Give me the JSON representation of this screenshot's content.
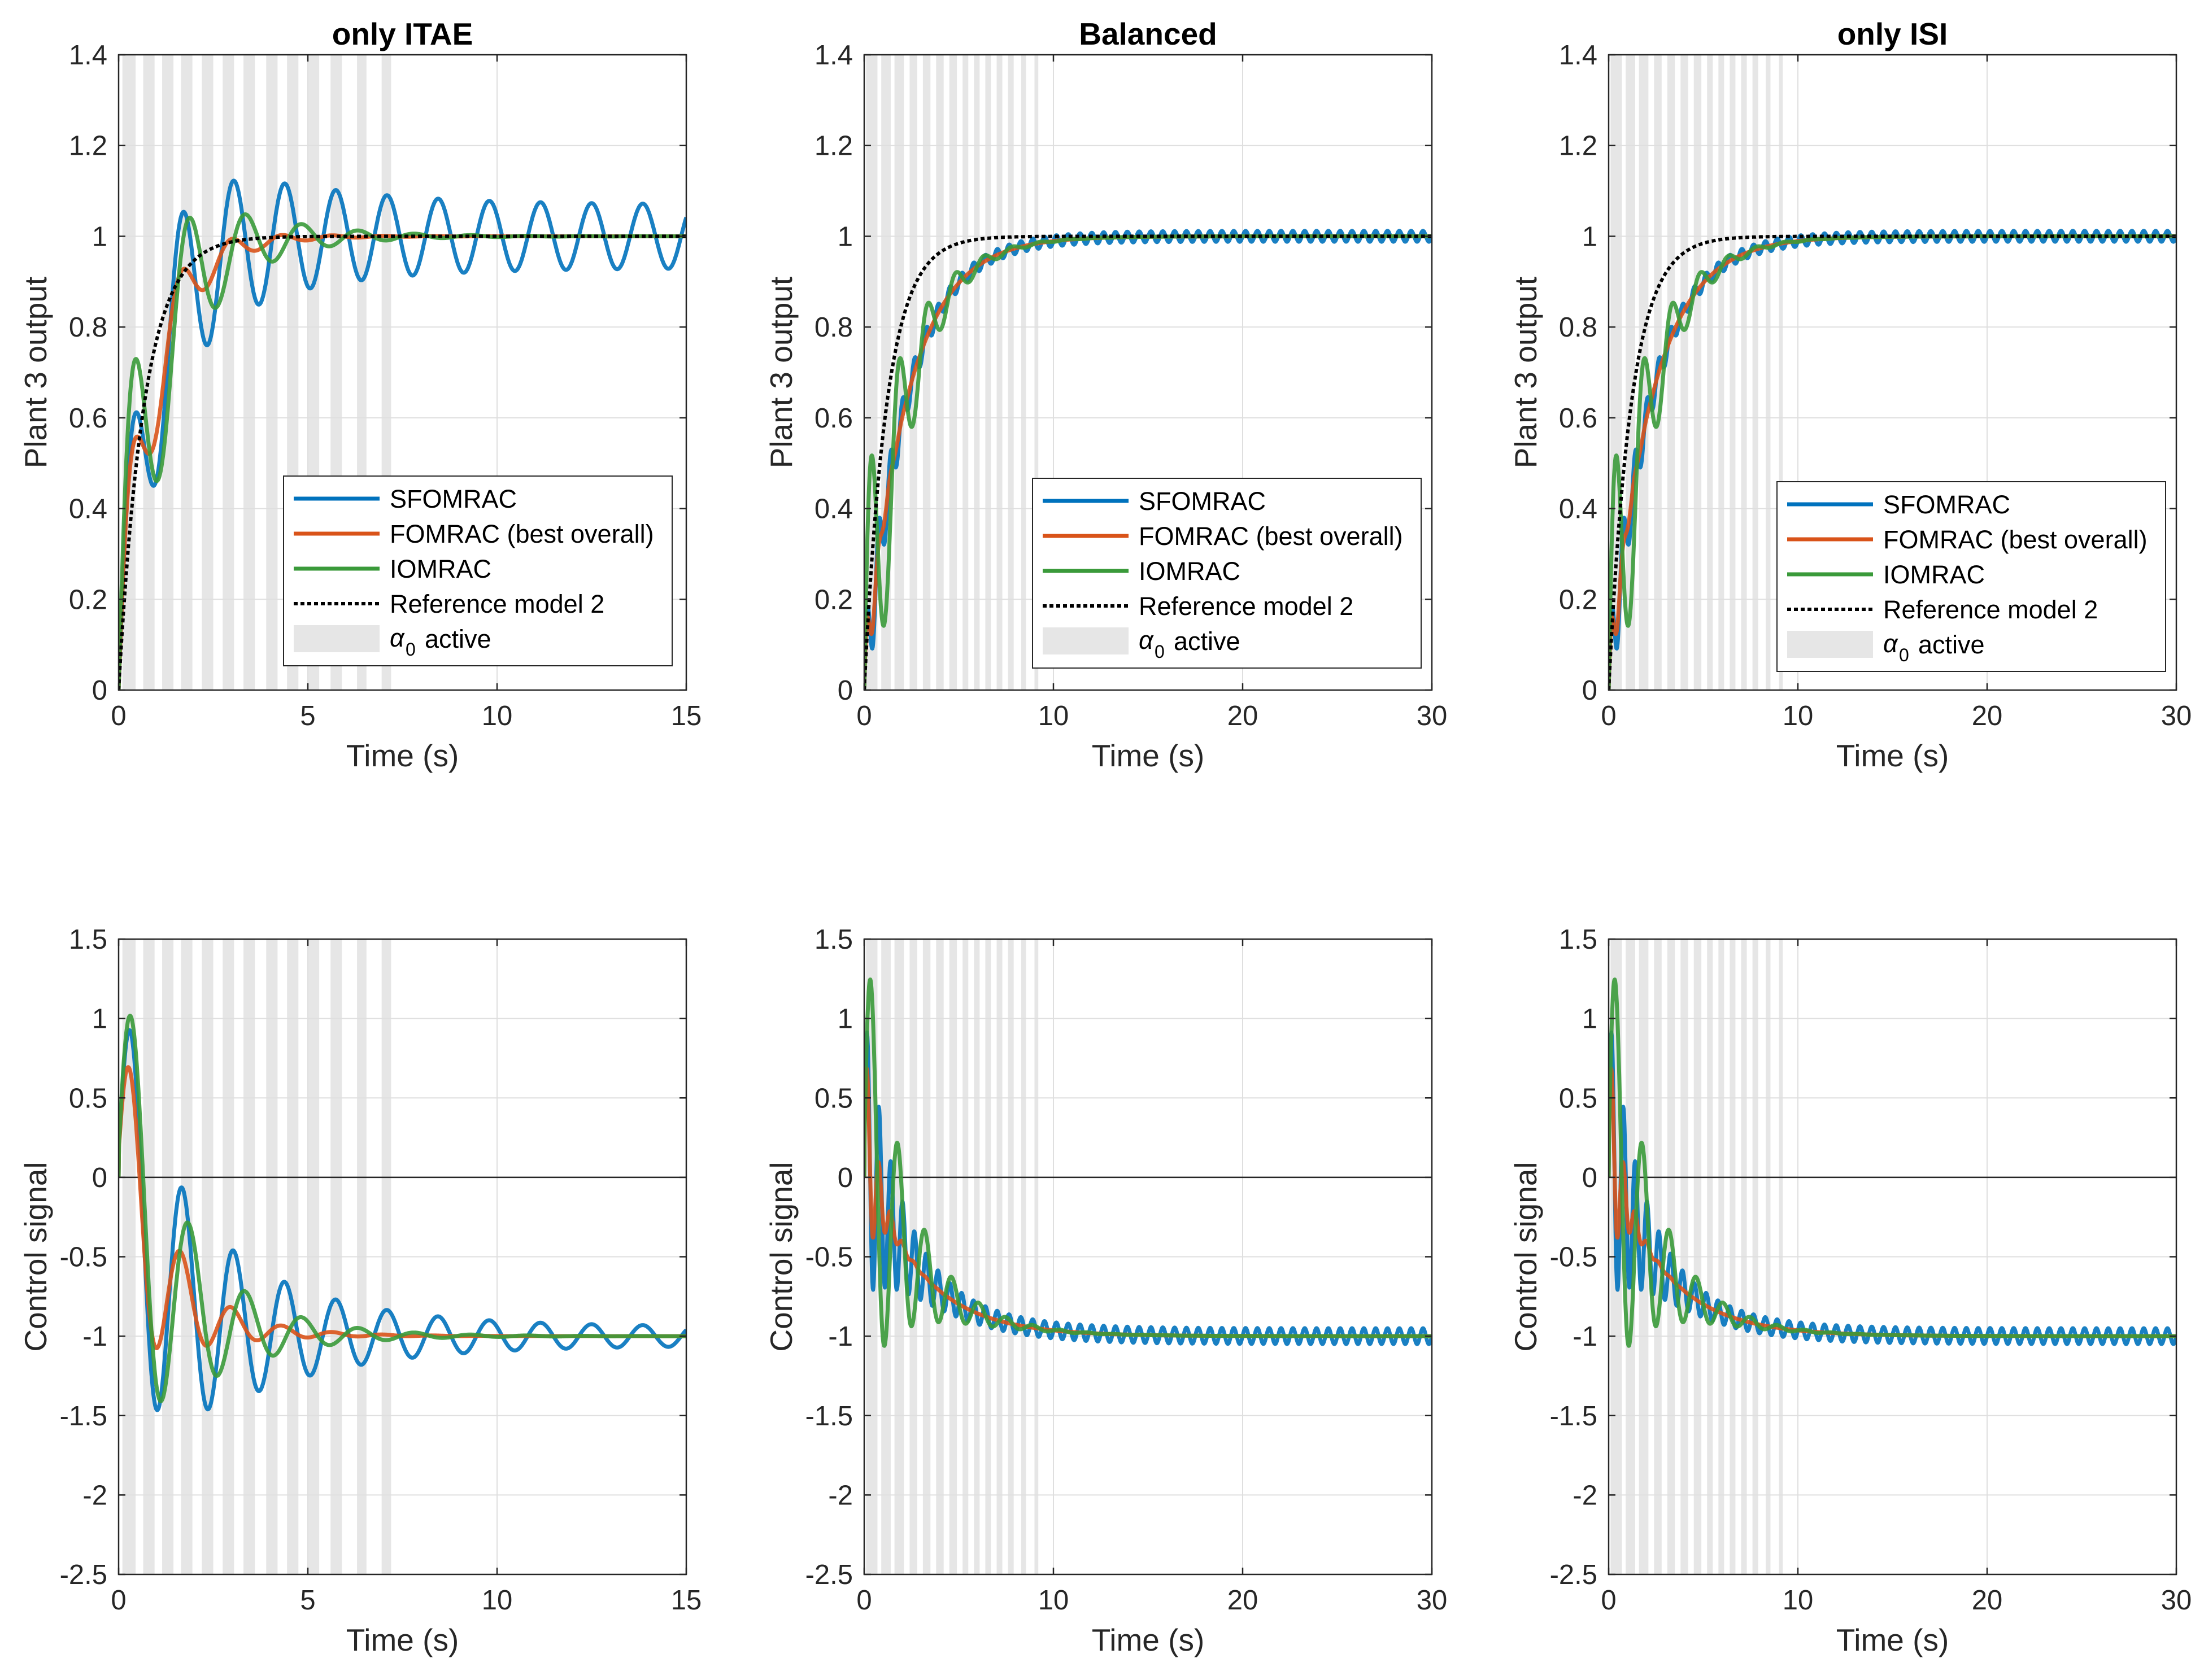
{
  "figure": {
    "description_free": true,
    "colors": {
      "background": "#ffffff",
      "axis": "#262626",
      "grid": "#dfdfdf",
      "shade": "#e6e6e6",
      "sfomrac": "#0072BD",
      "fomrac": "#D95319",
      "iomrac": "#3a9a3a",
      "reference": "#000000"
    }
  },
  "chart_data": [
    {
      "panel": "top-left",
      "type": "line",
      "title": "only ITAE",
      "xlabel": "Time (s)",
      "ylabel": "Plant 3 output",
      "xlim": [
        0,
        15
      ],
      "ylim": [
        0,
        1.4
      ],
      "xticks": [
        "0",
        "5",
        "10",
        "15"
      ],
      "yticks": [
        "0",
        "0.2",
        "0.4",
        "0.6",
        "0.8",
        "1",
        "1.2",
        "1.4"
      ],
      "signal": "output",
      "shaded_intervals": [
        [
          0.1,
          0.45
        ],
        [
          0.65,
          0.95
        ],
        [
          1.15,
          1.45
        ],
        [
          1.65,
          1.95
        ],
        [
          2.2,
          2.5
        ],
        [
          2.75,
          3.05
        ],
        [
          3.3,
          3.6
        ],
        [
          3.9,
          4.2
        ],
        [
          4.45,
          4.75
        ],
        [
          5.0,
          5.3
        ],
        [
          5.6,
          5.9
        ],
        [
          6.3,
          6.55
        ],
        [
          6.95,
          7.2
        ]
      ],
      "legend": {
        "placement": "bottom-right",
        "entries": [
          "SFOMRAC",
          "FOMRAC (best overall)",
          "IOMRAC",
          "Reference model 2",
          "active"
        ],
        "shade_symbol": "α",
        "shade_subscript": "0"
      },
      "series": [
        {
          "name": "SFOMRAC",
          "color": "#0072BD",
          "model": {
            "A": 0.25,
            "d": 0.35,
            "f": 0.74,
            "L": 0.07,
            "p": 0.87
          }
        },
        {
          "name": "FOMRAC (best overall)",
          "color": "#D95319",
          "model": {
            "A": 0.25,
            "d": 0.75,
            "f": 0.75,
            "L": 0.0,
            "p": 0.87
          }
        },
        {
          "name": "IOMRAC",
          "color": "#3a9a3a",
          "model": {
            "A": 0.44,
            "d": 0.55,
            "f": 0.67,
            "L": 0.0,
            "p": 0.87
          }
        },
        {
          "name": "Reference model 2",
          "color": "#000000",
          "dashed": true,
          "model": {
            "A": 0.0,
            "d": 0.0,
            "f": 0.0,
            "L": 0.0,
            "p": 0.68
          }
        }
      ]
    },
    {
      "panel": "top-center",
      "type": "line",
      "title": "Balanced",
      "xlabel": "Time (s)",
      "ylabel": "Plant 3 output",
      "xlim": [
        0,
        30
      ],
      "ylim": [
        0,
        1.4
      ],
      "xticks": [
        "0",
        "10",
        "20",
        "30"
      ],
      "yticks": [
        "0",
        "0.2",
        "0.4",
        "0.6",
        "0.8",
        "1",
        "1.2",
        "1.4"
      ],
      "signal": "output",
      "shaded_intervals": [
        [
          0.1,
          0.7
        ],
        [
          0.9,
          1.4
        ],
        [
          1.6,
          2.1
        ],
        [
          2.4,
          2.8
        ],
        [
          3.1,
          3.5
        ],
        [
          3.8,
          4.2
        ],
        [
          4.5,
          4.9
        ],
        [
          5.2,
          5.5
        ],
        [
          5.8,
          6.1
        ],
        [
          6.4,
          6.7
        ],
        [
          7.0,
          7.3
        ],
        [
          7.6,
          7.9
        ],
        [
          8.3,
          8.55
        ],
        [
          9.0,
          9.2
        ]
      ],
      "legend": {
        "placement": "bottom-right",
        "entries": [
          "SFOMRAC",
          "FOMRAC (best overall)",
          "IOMRAC",
          "Reference model 2",
          "active"
        ],
        "shade_symbol": "α",
        "shade_subscript": "0"
      },
      "series": [
        {
          "name": "SFOMRAC",
          "color": "#0072BD",
          "model": {
            "A": 0.12,
            "d": 0.7,
            "f": 1.6,
            "L": 0.012,
            "p": 2.2
          }
        },
        {
          "name": "FOMRAC (best overall)",
          "color": "#D95319",
          "model": {
            "A": 0.12,
            "d": 2.0,
            "f": 1.6,
            "L": 0.0,
            "p": 2.2
          }
        },
        {
          "name": "IOMRAC",
          "color": "#3a9a3a",
          "model": {
            "A": 0.44,
            "d": 0.55,
            "f": 0.67,
            "L": 0.0,
            "p": 2.2
          }
        },
        {
          "name": "Reference model 2",
          "color": "#000000",
          "dashed": true,
          "model": {
            "A": 0.0,
            "d": 0.0,
            "f": 0.0,
            "L": 0.0,
            "p": 1.2
          }
        }
      ]
    },
    {
      "panel": "top-right",
      "type": "line",
      "title": "only ISI",
      "xlabel": "Time (s)",
      "ylabel": "Plant 3 output",
      "xlim": [
        0,
        30
      ],
      "ylim": [
        0,
        1.4
      ],
      "xticks": [
        "0",
        "10",
        "20",
        "30"
      ],
      "yticks": [
        "0",
        "0.2",
        "0.4",
        "0.6",
        "0.8",
        "1",
        "1.2",
        "1.4"
      ],
      "signal": "output",
      "shaded_intervals": [
        [
          0.1,
          0.7
        ],
        [
          0.9,
          1.4
        ],
        [
          1.6,
          2.1
        ],
        [
          2.4,
          2.8
        ],
        [
          3.1,
          3.5
        ],
        [
          3.8,
          4.2
        ],
        [
          4.5,
          4.9
        ],
        [
          5.2,
          5.5
        ],
        [
          5.8,
          6.1
        ],
        [
          6.4,
          6.7
        ],
        [
          7.0,
          7.3
        ],
        [
          7.6,
          7.9
        ],
        [
          8.3,
          8.55
        ],
        [
          9.0,
          9.2
        ]
      ],
      "legend": {
        "placement": "bottom-right",
        "entries": [
          "SFOMRAC",
          "FOMRAC (best overall)",
          "IOMRAC",
          "Reference model 2",
          "active"
        ],
        "shade_symbol": "α",
        "shade_subscript": "0"
      },
      "series": [
        {
          "name": "SFOMRAC",
          "color": "#0072BD",
          "model": {
            "A": 0.12,
            "d": 0.7,
            "f": 1.6,
            "L": 0.012,
            "p": 2.2
          }
        },
        {
          "name": "FOMRAC (best overall)",
          "color": "#D95319",
          "model": {
            "A": 0.12,
            "d": 2.0,
            "f": 1.6,
            "L": 0.0,
            "p": 2.2
          }
        },
        {
          "name": "IOMRAC",
          "color": "#3a9a3a",
          "model": {
            "A": 0.44,
            "d": 0.55,
            "f": 0.67,
            "L": 0.0,
            "p": 2.2
          }
        },
        {
          "name": "Reference model 2",
          "color": "#000000",
          "dashed": true,
          "model": {
            "A": 0.0,
            "d": 0.0,
            "f": 0.0,
            "L": 0.0,
            "p": 1.2
          }
        }
      ]
    },
    {
      "panel": "bottom-left",
      "type": "line",
      "title": "",
      "xlabel": "Time (s)",
      "ylabel": "Control signal",
      "xlim": [
        0,
        15
      ],
      "ylim": [
        -2.5,
        1.5
      ],
      "xticks": [
        "0",
        "5",
        "10",
        "15"
      ],
      "yticks": [
        "-2.5",
        "-2",
        "-1.5",
        "-1",
        "-0.5",
        "0",
        "0.5",
        "1",
        "1.5"
      ],
      "signal": "control",
      "zero_line": true,
      "shaded_intervals": [
        [
          0.1,
          0.45
        ],
        [
          0.65,
          0.95
        ],
        [
          1.15,
          1.45
        ],
        [
          1.65,
          1.95
        ],
        [
          2.2,
          2.5
        ],
        [
          2.75,
          3.05
        ],
        [
          3.3,
          3.6
        ],
        [
          3.9,
          4.2
        ],
        [
          4.45,
          4.75
        ],
        [
          5.0,
          5.3
        ],
        [
          5.6,
          5.9
        ],
        [
          6.3,
          6.55
        ],
        [
          6.95,
          7.2
        ]
      ],
      "series": [
        {
          "name": "SFOMRAC",
          "color": "#0072BD",
          "model": {
            "A": 1.2,
            "d": 0.35,
            "f": 0.74,
            "L": 0.06,
            "k": 0.9
          }
        },
        {
          "name": "FOMRAC (best overall)",
          "color": "#D95319",
          "model": {
            "A": 1.05,
            "d": 0.75,
            "f": 0.75,
            "L": 0.0,
            "k": 0.9
          }
        },
        {
          "name": "IOMRAC",
          "color": "#3a9a3a",
          "model": {
            "A": 1.45,
            "d": 0.55,
            "f": 0.67,
            "L": 0.0,
            "k": 0.9
          }
        }
      ]
    },
    {
      "panel": "bottom-center",
      "type": "line",
      "title": "",
      "xlabel": "Time (s)",
      "ylabel": "Control signal",
      "xlim": [
        0,
        30
      ],
      "ylim": [
        -2.5,
        1.5
      ],
      "xticks": [
        "0",
        "10",
        "20",
        "30"
      ],
      "yticks": [
        "-2.5",
        "-2",
        "-1.5",
        "-1",
        "-0.5",
        "0",
        "0.5",
        "1",
        "1.5"
      ],
      "signal": "control",
      "zero_line": true,
      "shaded_intervals": [
        [
          0.1,
          0.7
        ],
        [
          0.9,
          1.4
        ],
        [
          1.6,
          2.1
        ],
        [
          2.4,
          2.8
        ],
        [
          3.1,
          3.5
        ],
        [
          3.8,
          4.2
        ],
        [
          4.5,
          4.9
        ],
        [
          5.2,
          5.5
        ],
        [
          5.8,
          6.1
        ],
        [
          6.4,
          6.7
        ],
        [
          7.0,
          7.3
        ],
        [
          7.6,
          7.9
        ],
        [
          8.3,
          8.55
        ],
        [
          9.0,
          9.2
        ]
      ],
      "series": [
        {
          "name": "SFOMRAC",
          "color": "#0072BD",
          "model": {
            "A": 0.9,
            "d": 0.65,
            "f": 1.6,
            "L": 0.05,
            "k": 3.0
          }
        },
        {
          "name": "FOMRAC (best overall)",
          "color": "#D95319",
          "model": {
            "A": 0.75,
            "d": 1.6,
            "f": 1.6,
            "L": 0.0,
            "k": 3.0
          }
        },
        {
          "name": "IOMRAC",
          "color": "#3a9a3a",
          "model": {
            "A": 1.45,
            "d": 0.5,
            "f": 0.7,
            "L": 0.0,
            "k": 3.0
          }
        }
      ]
    },
    {
      "panel": "bottom-right",
      "type": "line",
      "title": "",
      "xlabel": "Time (s)",
      "ylabel": "Control signal",
      "xlim": [
        0,
        30
      ],
      "ylim": [
        -2.5,
        1.5
      ],
      "xticks": [
        "0",
        "10",
        "20",
        "30"
      ],
      "yticks": [
        "-2.5",
        "-2",
        "-1.5",
        "-1",
        "-0.5",
        "0",
        "0.5",
        "1",
        "1.5"
      ],
      "signal": "control",
      "zero_line": true,
      "shaded_intervals": [
        [
          0.1,
          0.7
        ],
        [
          0.9,
          1.4
        ],
        [
          1.6,
          2.1
        ],
        [
          2.4,
          2.8
        ],
        [
          3.1,
          3.5
        ],
        [
          3.8,
          4.2
        ],
        [
          4.5,
          4.9
        ],
        [
          5.2,
          5.5
        ],
        [
          5.8,
          6.1
        ],
        [
          6.4,
          6.7
        ],
        [
          7.0,
          7.3
        ],
        [
          7.6,
          7.9
        ],
        [
          8.3,
          8.55
        ],
        [
          9.0,
          9.2
        ]
      ],
      "series": [
        {
          "name": "SFOMRAC",
          "color": "#0072BD",
          "model": {
            "A": 0.9,
            "d": 0.65,
            "f": 1.6,
            "L": 0.05,
            "k": 3.0
          }
        },
        {
          "name": "FOMRAC (best overall)",
          "color": "#D95319",
          "model": {
            "A": 0.75,
            "d": 1.6,
            "f": 1.6,
            "L": 0.0,
            "k": 3.0
          }
        },
        {
          "name": "IOMRAC",
          "color": "#3a9a3a",
          "model": {
            "A": 1.45,
            "d": 0.5,
            "f": 0.7,
            "L": 0.0,
            "k": 3.0
          }
        }
      ]
    }
  ]
}
